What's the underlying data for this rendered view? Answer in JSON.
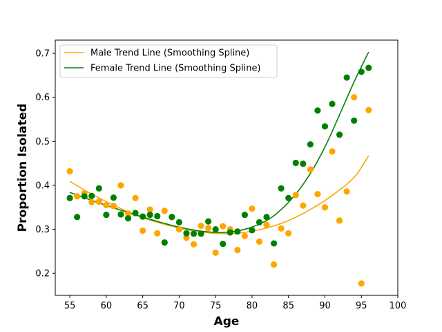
{
  "chart_data": {
    "type": "scatter",
    "title": "",
    "xlabel": "Age",
    "ylabel": "Proportion Isolated",
    "xlim": [
      53,
      100
    ],
    "ylim": [
      0.15,
      0.73
    ],
    "xticks": [
      "55",
      "60",
      "65",
      "70",
      "75",
      "80",
      "85",
      "90",
      "95",
      "100"
    ],
    "yticks": [
      "0.2",
      "0.3",
      "0.4",
      "0.5",
      "0.6",
      "0.7"
    ],
    "grid": false,
    "legend_position": "upper-left",
    "series": [
      {
        "key": "male",
        "color": "#FFA500",
        "points": [
          [
            55,
            0.432
          ],
          [
            56,
            0.375
          ],
          [
            57,
            0.382
          ],
          [
            58,
            0.362
          ],
          [
            59,
            0.363
          ],
          [
            60,
            0.355
          ],
          [
            61,
            0.353
          ],
          [
            62,
            0.4
          ],
          [
            63,
            0.336
          ],
          [
            64,
            0.371
          ],
          [
            65,
            0.297
          ],
          [
            66,
            0.345
          ],
          [
            67,
            0.291
          ],
          [
            68,
            0.342
          ],
          [
            69,
            0.328
          ],
          [
            70,
            0.3
          ],
          [
            71,
            0.281
          ],
          [
            72,
            0.266
          ],
          [
            73,
            0.308
          ],
          [
            74,
            0.303
          ],
          [
            75,
            0.247
          ],
          [
            76,
            0.307
          ],
          [
            77,
            0.3
          ],
          [
            78,
            0.253
          ],
          [
            79,
            0.285
          ],
          [
            80,
            0.347
          ],
          [
            81,
            0.272
          ],
          [
            82,
            0.31
          ],
          [
            83,
            0.22
          ],
          [
            84,
            0.302
          ],
          [
            85,
            0.291
          ],
          [
            86,
            0.378
          ],
          [
            87,
            0.354
          ],
          [
            88,
            0.436
          ],
          [
            89,
            0.38
          ],
          [
            90,
            0.35
          ],
          [
            91,
            0.477
          ],
          [
            92,
            0.32
          ],
          [
            93,
            0.386
          ],
          [
            94,
            0.6
          ],
          [
            95,
            0.177
          ],
          [
            96,
            0.571
          ]
        ]
      },
      {
        "key": "female",
        "color": "#008000",
        "points": [
          [
            55,
            0.371
          ],
          [
            56,
            0.328
          ],
          [
            57,
            0.375
          ],
          [
            58,
            0.376
          ],
          [
            59,
            0.393
          ],
          [
            60,
            0.333
          ],
          [
            61,
            0.372
          ],
          [
            62,
            0.334
          ],
          [
            63,
            0.325
          ],
          [
            64,
            0.337
          ],
          [
            65,
            0.329
          ],
          [
            66,
            0.333
          ],
          [
            67,
            0.33
          ],
          [
            68,
            0.27
          ],
          [
            69,
            0.328
          ],
          [
            70,
            0.316
          ],
          [
            71,
            0.291
          ],
          [
            72,
            0.29
          ],
          [
            73,
            0.29
          ],
          [
            74,
            0.318
          ],
          [
            75,
            0.3
          ],
          [
            76,
            0.267
          ],
          [
            77,
            0.293
          ],
          [
            78,
            0.295
          ],
          [
            79,
            0.333
          ],
          [
            80,
            0.298
          ],
          [
            81,
            0.316
          ],
          [
            82,
            0.328
          ],
          [
            83,
            0.268
          ],
          [
            84,
            0.393
          ],
          [
            85,
            0.371
          ],
          [
            86,
            0.451
          ],
          [
            87,
            0.449
          ],
          [
            88,
            0.493
          ],
          [
            89,
            0.57
          ],
          [
            90,
            0.534
          ],
          [
            91,
            0.585
          ],
          [
            92,
            0.515
          ],
          [
            93,
            0.645
          ],
          [
            94,
            0.547
          ],
          [
            95,
            0.658
          ],
          [
            96,
            0.667
          ]
        ]
      }
    ],
    "trend_lines": [
      {
        "key": "male",
        "name": "Male Trend Line (Smoothing Spline)",
        "color": "#FFA500",
        "points": [
          [
            55,
            0.409
          ],
          [
            58,
            0.38
          ],
          [
            61,
            0.355
          ],
          [
            64,
            0.333
          ],
          [
            67,
            0.316
          ],
          [
            70,
            0.303
          ],
          [
            73,
            0.294
          ],
          [
            76,
            0.29
          ],
          [
            79,
            0.293
          ],
          [
            82,
            0.303
          ],
          [
            85,
            0.32
          ],
          [
            88,
            0.345
          ],
          [
            91,
            0.377
          ],
          [
            94,
            0.418
          ],
          [
            96,
            0.467
          ]
        ]
      },
      {
        "key": "female",
        "name": "Female Trend Line (Smoothing Spline)",
        "color": "#008000",
        "points": [
          [
            55,
            0.384
          ],
          [
            58,
            0.366
          ],
          [
            61,
            0.349
          ],
          [
            64,
            0.333
          ],
          [
            67,
            0.318
          ],
          [
            70,
            0.305
          ],
          [
            73,
            0.296
          ],
          [
            76,
            0.293
          ],
          [
            79,
            0.3
          ],
          [
            82,
            0.32
          ],
          [
            84,
            0.345
          ],
          [
            86,
            0.38
          ],
          [
            88,
            0.427
          ],
          [
            90,
            0.487
          ],
          [
            92,
            0.56
          ],
          [
            94,
            0.635
          ],
          [
            96,
            0.703
          ]
        ]
      }
    ]
  }
}
